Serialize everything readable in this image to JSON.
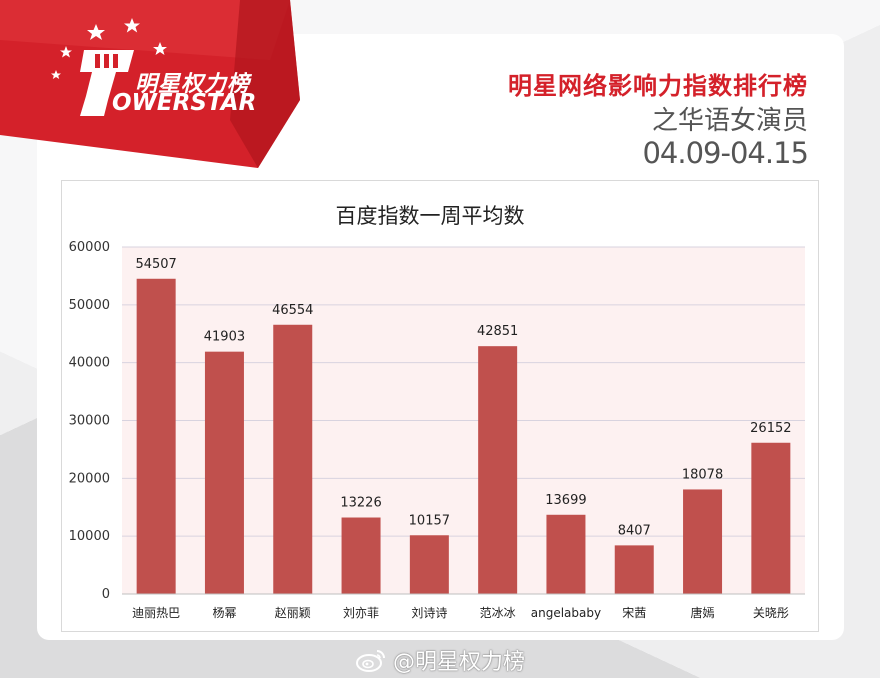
{
  "brand": {
    "name_cn": "明星权力榜",
    "name_en": "OWERSTAR",
    "primary_color": "#d4212a"
  },
  "header": {
    "title": "明星网络影响力指数排行榜",
    "subtitle": "之华语女演员",
    "date_range": "04.09-04.15"
  },
  "watermark": {
    "icon": "weibo-icon",
    "text": "@明星权力榜"
  },
  "chart_data": {
    "type": "bar",
    "title": "百度指数一周平均数",
    "categories": [
      "迪丽热巴",
      "杨幂",
      "赵丽颖",
      "刘亦菲",
      "刘诗诗",
      "范冰冰",
      "angelababy",
      "宋茜",
      "唐嫣",
      "关晓彤"
    ],
    "values": [
      54507,
      41903,
      46554,
      13226,
      10157,
      42851,
      13699,
      8407,
      18078,
      26152
    ],
    "data_labels": [
      "54507",
      "41903",
      "46554",
      "13226",
      "10157",
      "42851",
      "13699",
      "8407",
      "18078",
      "26152"
    ],
    "ylim": [
      0,
      60000
    ],
    "yticks": [
      "0",
      "10000",
      "20000",
      "30000",
      "40000",
      "50000",
      "60000"
    ],
    "xlabel": "",
    "ylabel": "",
    "grid": true,
    "bar_color": "#c0504d",
    "plot_bg_color": "#fdf1f1"
  }
}
